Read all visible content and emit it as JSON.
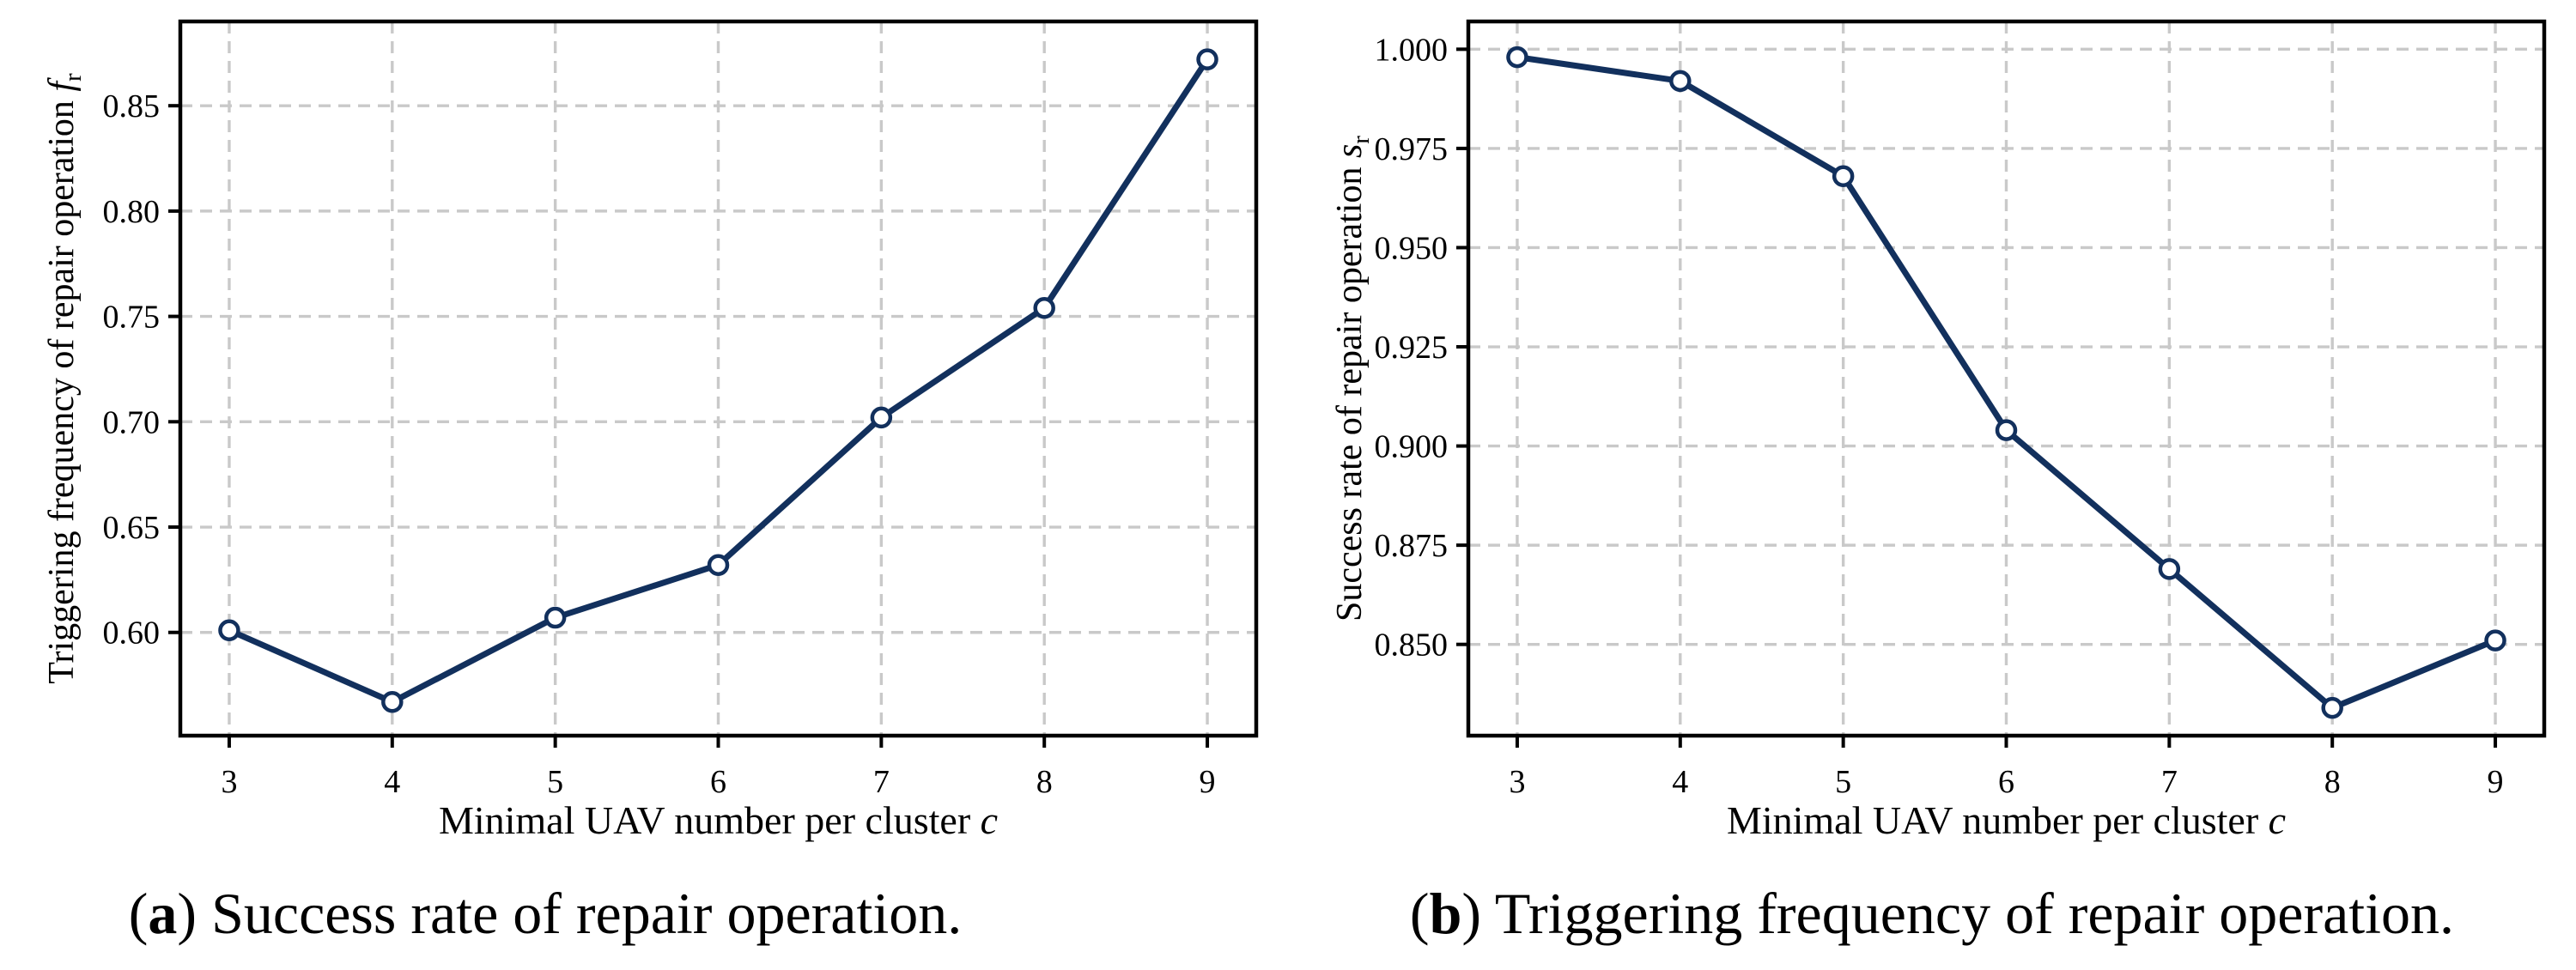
{
  "page": {
    "background": "#ffffff"
  },
  "colors": {
    "line": "#12305d",
    "grid": "#c9c9c9",
    "frame": "#000000",
    "marker_fill": "#ffffff"
  },
  "captions": [
    {
      "open": "(",
      "letter": "a",
      "close": ")",
      "text": " Success rate of repair operation."
    },
    {
      "open": "(",
      "letter": "b",
      "close": ")",
      "text": " Triggering frequency of repair operation."
    }
  ],
  "chart_data": [
    {
      "type": "line",
      "panel": "left",
      "title": "",
      "xlabel": {
        "text": "Minimal UAV number per cluster ",
        "var": "c",
        "sub": ""
      },
      "ylabel": {
        "text": "Triggering frequency of repair operation ",
        "var": "f",
        "sub": "r"
      },
      "x": [
        3,
        4,
        5,
        6,
        7,
        8,
        9
      ],
      "series": [
        {
          "name": "triggering-frequency",
          "values": [
            0.601,
            0.567,
            0.607,
            0.632,
            0.702,
            0.754,
            0.872
          ]
        }
      ],
      "xlim": [
        2.7,
        9.3
      ],
      "ylim": [
        0.551,
        0.89
      ],
      "xticks": {
        "values": [
          3,
          4,
          5,
          6,
          7,
          8,
          9
        ],
        "labels": [
          "3",
          "4",
          "5",
          "6",
          "7",
          "8",
          "9"
        ]
      },
      "yticks": {
        "values": [
          0.6,
          0.65,
          0.7,
          0.75,
          0.8,
          0.85
        ],
        "labels": [
          "0.60",
          "0.65",
          "0.70",
          "0.75",
          "0.80",
          "0.85"
        ]
      },
      "grid": true,
      "legend": "none",
      "line_color": "#12305d",
      "marker": "open-circle"
    },
    {
      "type": "line",
      "panel": "right",
      "title": "",
      "xlabel": {
        "text": "Minimal UAV number per cluster ",
        "var": "c",
        "sub": ""
      },
      "ylabel": {
        "text": "Success rate of repair operation ",
        "var": "s",
        "sub": "r"
      },
      "x": [
        3,
        4,
        5,
        6,
        7,
        8,
        9
      ],
      "series": [
        {
          "name": "success-rate",
          "values": [
            0.998,
            0.992,
            0.968,
            0.904,
            0.869,
            0.834,
            0.851
          ]
        }
      ],
      "xlim": [
        2.7,
        9.3
      ],
      "ylim": [
        0.827,
        1.007
      ],
      "xticks": {
        "values": [
          3,
          4,
          5,
          6,
          7,
          8,
          9
        ],
        "labels": [
          "3",
          "4",
          "5",
          "6",
          "7",
          "8",
          "9"
        ]
      },
      "yticks": {
        "values": [
          0.85,
          0.875,
          0.9,
          0.925,
          0.95,
          0.975,
          1.0
        ],
        "labels": [
          "0.850",
          "0.875",
          "0.900",
          "0.925",
          "0.950",
          "0.975",
          "1.000"
        ]
      },
      "grid": true,
      "legend": "none",
      "line_color": "#12305d",
      "marker": "open-circle"
    }
  ]
}
